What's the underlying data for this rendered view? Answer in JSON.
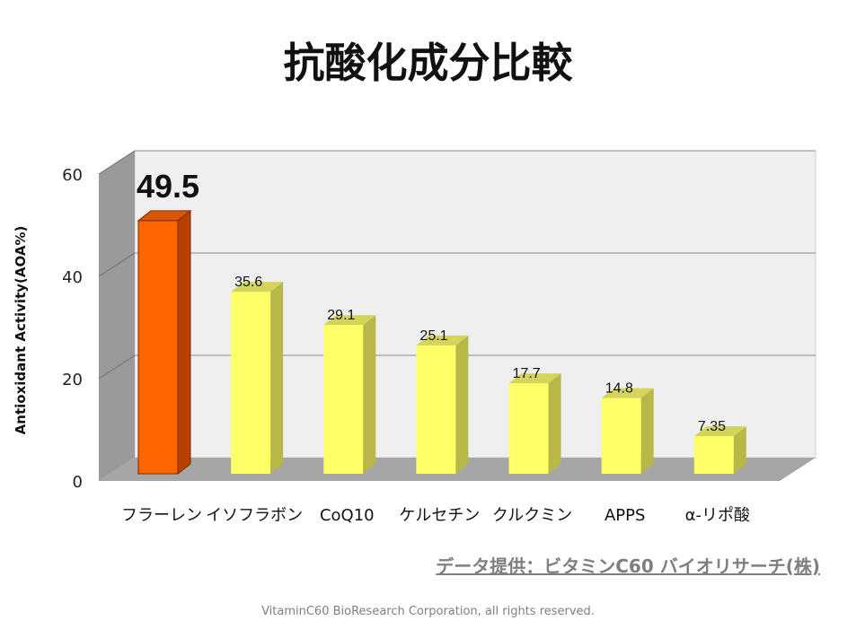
{
  "chart_data": {
    "type": "bar",
    "title": "抗酸化成分比較",
    "ylabel": "Antioxidant Activity(AOA%)",
    "xlabel": "",
    "ylim": [
      0,
      60
    ],
    "yticks": [
      0,
      20,
      40,
      60
    ],
    "grid": true,
    "three_d": true,
    "categories": [
      "フラーレン",
      "イソフラボン",
      "CoQ10",
      "ケルセチン",
      "クルクミン",
      "APPS",
      "α-リポ酸"
    ],
    "values": [
      49.5,
      35.6,
      29.1,
      25.1,
      17.7,
      14.8,
      7.35
    ],
    "value_labels": [
      "49.5",
      "35.6",
      "29.1",
      "25.1",
      "17.7",
      "14.8",
      "7.35"
    ],
    "highlight_index": 0,
    "colors": {
      "highlight_front": "#ff6600",
      "highlight_side": "#b84000",
      "highlight_top": "#d95600",
      "bar_front": "#ffff66",
      "bar_side": "#b8b848",
      "bar_top": "#d4d45a",
      "wall": "#efefef",
      "side_wall": "#9a9a9a",
      "floor": "#a6a6a6",
      "grid": "#888888"
    }
  },
  "source_note": "データ提供：ビタミンC60 バイオリサーチ(株)",
  "copyright": "VitaminC60 BioResearch Corporation, all rights reserved."
}
